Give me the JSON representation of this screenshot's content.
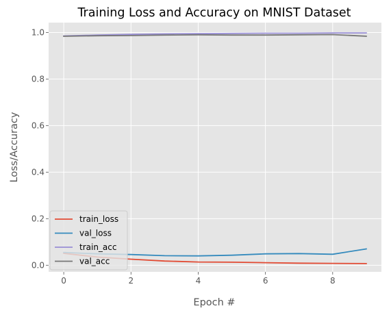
{
  "chart_data": {
    "type": "line",
    "title": "Training Loss and Accuracy on MNIST Dataset",
    "xlabel": "Epoch #",
    "ylabel": "Loss/Accuracy",
    "xlim": [
      -0.45,
      9.45
    ],
    "ylim": [
      -0.0285,
      1.0425
    ],
    "x_ticks": [
      0,
      2,
      4,
      6,
      8
    ],
    "y_ticks": [
      0.0,
      0.2,
      0.4,
      0.6,
      0.8,
      1.0
    ],
    "x_tick_labels": [
      "0",
      "2",
      "4",
      "6",
      "8"
    ],
    "y_tick_labels": [
      "0.0",
      "0.2",
      "0.4",
      "0.6",
      "0.8",
      "1.0"
    ],
    "grid": true,
    "legend_position": "lower-left",
    "x": [
      0,
      1,
      2,
      3,
      4,
      5,
      6,
      7,
      8,
      9
    ],
    "series": [
      {
        "name": "train_loss",
        "color": "#E24A33",
        "values": [
          0.051,
          0.035,
          0.026,
          0.018,
          0.014,
          0.013,
          0.011,
          0.009,
          0.008,
          0.007
        ]
      },
      {
        "name": "val_loss",
        "color": "#348ABD",
        "values": [
          0.055,
          0.049,
          0.046,
          0.041,
          0.04,
          0.043,
          0.049,
          0.05,
          0.047,
          0.07
        ]
      },
      {
        "name": "train_acc",
        "color": "#988ED5",
        "values": [
          0.985,
          0.989,
          0.992,
          0.994,
          0.995,
          0.996,
          0.997,
          0.997,
          0.998,
          0.998
        ]
      },
      {
        "name": "val_acc",
        "color": "#777777",
        "values": [
          0.984,
          0.986,
          0.987,
          0.989,
          0.99,
          0.989,
          0.989,
          0.99,
          0.991,
          0.984
        ]
      }
    ]
  }
}
